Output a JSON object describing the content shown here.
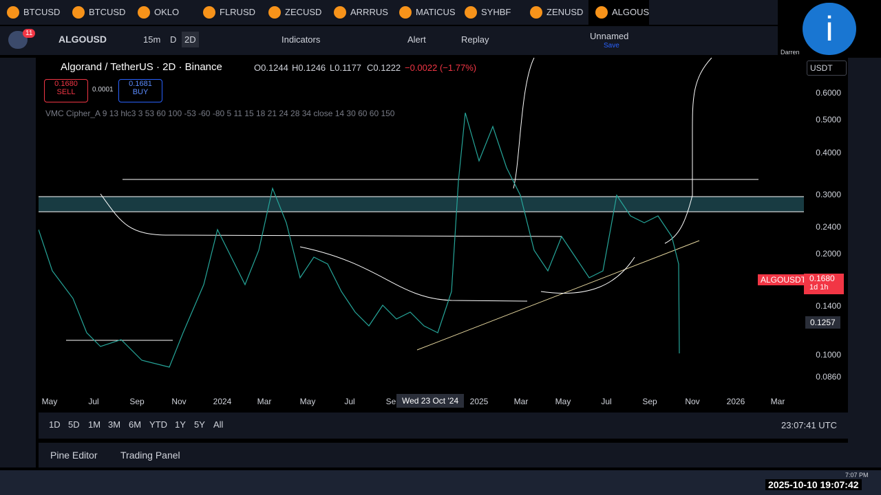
{
  "tabs": [
    "BTCUSD",
    "BTCUSD",
    "OKLO",
    "FLRUSD",
    "ZECUSD",
    "ARRRUS",
    "MATICUS",
    "SYHBF",
    "ZENUSD",
    "ALGOUS"
  ],
  "toolbar": {
    "badge": "11",
    "symbol": "ALGOUSD",
    "intervals": [
      "15m",
      "D",
      "2D"
    ],
    "indicators": "Indicators",
    "alert": "Alert",
    "replay": "Replay",
    "layout": "Unnamed",
    "save": "Save",
    "user": "Darren"
  },
  "legend": {
    "title": "Algorand / TetherUS · 2D · Binance",
    "open": "O0.1244",
    "high": "H0.1246",
    "low": "L0.1177",
    "close": "C0.1222",
    "change": "−0.0022 (−1.77%)",
    "sell_price": "0.1680",
    "sell": "SELL",
    "spread": "0.0001",
    "buy_price": "0.1681",
    "buy": "BUY",
    "indicator": "VMC Cipher_A 9 13 hlc3 3 53 60 100 -53 -60 -80 5 11 15 18 21 24 28 34 close 14 30 60 60 150"
  },
  "price_axis": {
    "currency": "USDT",
    "labels": [
      "0.6000",
      "0.5000",
      "0.4000",
      "0.3000",
      "0.2400",
      "0.2000",
      "0.1400",
      "0.1000",
      "0.0860"
    ],
    "symbol_tag": "ALGOUSDT",
    "last_price": "0.1680",
    "countdown": "1d 1h",
    "crosshair_price": "0.1257"
  },
  "time_axis": {
    "labels": [
      "May",
      "Jul",
      "Sep",
      "Nov",
      "2024",
      "Mar",
      "May",
      "Jul",
      "Se",
      "2025",
      "Mar",
      "May",
      "Jul",
      "Sep",
      "Nov",
      "2026",
      "Mar"
    ],
    "crosshair_date": "Wed 23 Oct '24"
  },
  "ranges": [
    "1D",
    "5D",
    "1M",
    "3M",
    "6M",
    "YTD",
    "1Y",
    "5Y",
    "All"
  ],
  "clock": "23:07:41 UTC",
  "bottom_panel": [
    "Pine Editor",
    "Trading Panel"
  ],
  "taskbar": {
    "time": "7:07 PM",
    "datetime": "2025-10-10 19:07:42"
  }
}
